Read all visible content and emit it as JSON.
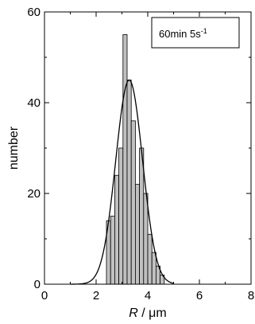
{
  "chart_data": {
    "type": "bar",
    "title": "",
    "xlabel_symbol": "R",
    "xlabel_unit": " / μm",
    "ylabel": "number",
    "legend_text": "60min 5s",
    "legend_superscript": "-1",
    "legend_position": "top-right",
    "xlim": [
      0,
      8
    ],
    "ylim": [
      0,
      60
    ],
    "x_ticks": [
      0,
      2,
      4,
      6,
      8
    ],
    "y_ticks": [
      0,
      20,
      40,
      60
    ],
    "grid": false,
    "bar_width": 0.16,
    "bar_color": "#c0c0c0",
    "bars": [
      {
        "x_left": 2.4,
        "value": 14
      },
      {
        "x_left": 2.56,
        "value": 15
      },
      {
        "x_left": 2.72,
        "value": 24
      },
      {
        "x_left": 2.88,
        "value": 30
      },
      {
        "x_left": 3.04,
        "value": 55
      },
      {
        "x_left": 3.2,
        "value": 45
      },
      {
        "x_left": 3.36,
        "value": 36
      },
      {
        "x_left": 3.52,
        "value": 22
      },
      {
        "x_left": 3.68,
        "value": 30
      },
      {
        "x_left": 3.84,
        "value": 20
      },
      {
        "x_left": 4.0,
        "value": 11
      },
      {
        "x_left": 4.16,
        "value": 7
      },
      {
        "x_left": 4.32,
        "value": 4
      },
      {
        "x_left": 4.48,
        "value": 2
      }
    ],
    "fit_curve": {
      "type": "gaussian",
      "peak": 45,
      "center": 3.28,
      "sigma": 0.52,
      "x_range": [
        1.0,
        5.0
      ]
    }
  }
}
